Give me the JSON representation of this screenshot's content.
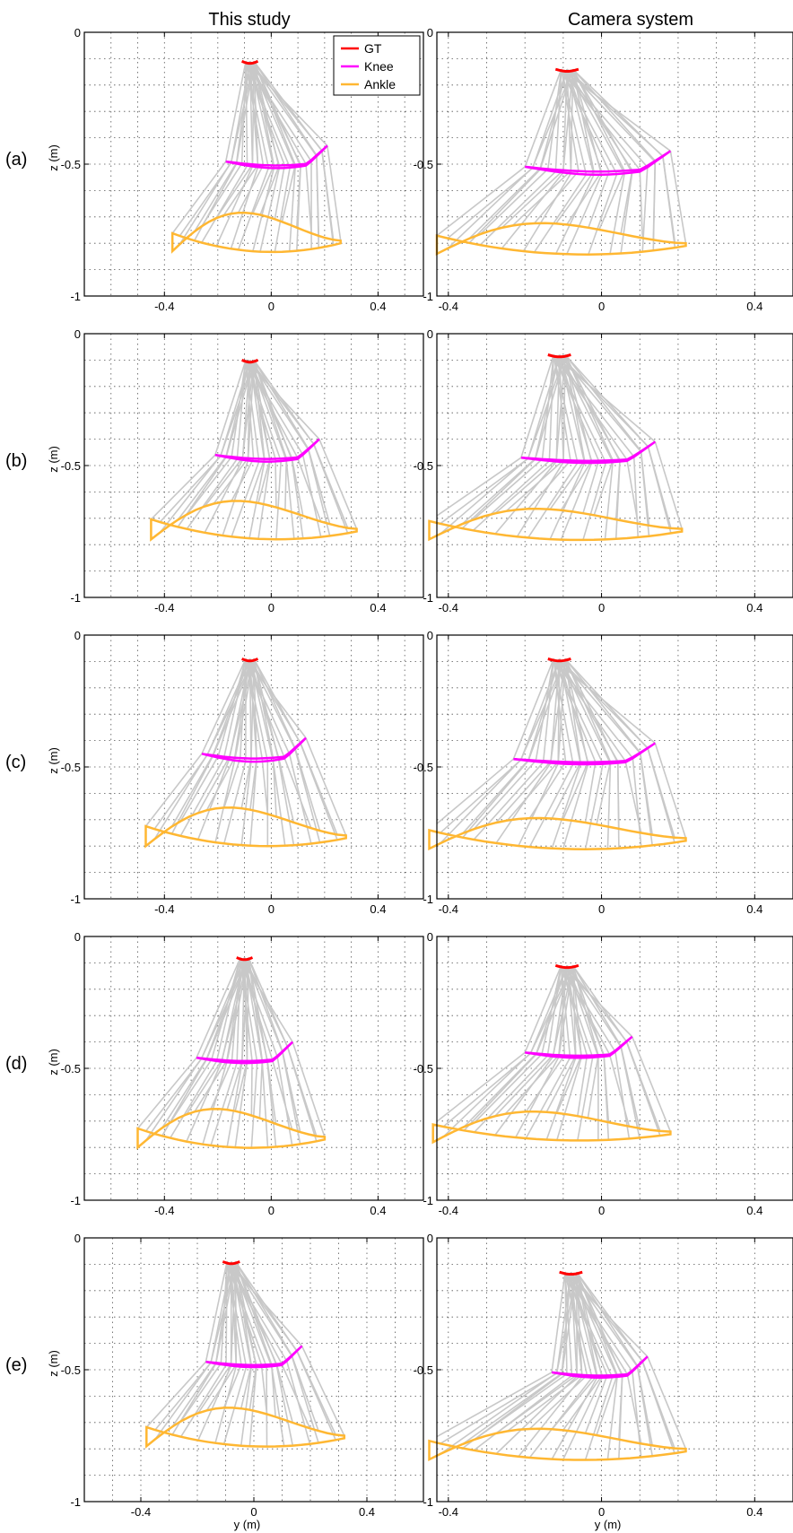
{
  "figure": {
    "columns": [
      "This study",
      "Camera system"
    ],
    "rows": [
      "(a)",
      "(b)",
      "(c)",
      "(d)",
      "(e)"
    ],
    "ylabel": "z (m)",
    "xlabel": "y (m)",
    "legend": [
      "GT",
      "Knee",
      "Ankle"
    ]
  },
  "colors": {
    "gt": "#ff0000",
    "knee": "#ff00ff",
    "ankle": "#ffb732",
    "limb": "#c8c8c8",
    "grid": "#555555"
  },
  "chart_data": [
    {
      "type": "line",
      "panel": "(a) This study",
      "xlim": [
        -0.7,
        0.57
      ],
      "ylim": [
        -1,
        0
      ],
      "xticks": [
        "-0.4",
        "0",
        "0.4"
      ],
      "yticks": [
        "0",
        "-0.5",
        "-1"
      ],
      "grid": true,
      "gt": {
        "y": -0.08,
        "z": -0.11
      },
      "knee": {
        "y0": -0.17,
        "y1": 0.21,
        "zc": -0.49,
        "sag": 0.025,
        "r": 0.09
      },
      "ankle": {
        "y0": -0.37,
        "y1": 0.26,
        "zc": -0.81,
        "sag": 0.05,
        "r": 0.13
      }
    },
    {
      "type": "line",
      "panel": "(a) Camera system",
      "xlim": [
        -0.43,
        0.5
      ],
      "ylim": [
        -1,
        0
      ],
      "xticks": [
        "-0.4",
        "0",
        "0.4"
      ],
      "yticks": [
        "-0.5",
        "-1"
      ],
      "grid": true,
      "gt": {
        "y": -0.09,
        "z": -0.14
      },
      "knee": {
        "y0": -0.2,
        "y1": 0.18,
        "zc": -0.51,
        "sag": 0.03,
        "r": 0.08
      },
      "ankle": {
        "y0": -0.43,
        "y1": 0.22,
        "zc": -0.82,
        "sag": 0.05,
        "r": 0.1
      }
    },
    {
      "type": "line",
      "panel": "(b) This study",
      "xlim": [
        -0.7,
        0.57
      ],
      "ylim": [
        -1,
        0
      ],
      "xticks": [
        "-0.4",
        "0",
        "0.4"
      ],
      "yticks": [
        "0",
        "-0.5",
        "-1"
      ],
      "grid": true,
      "gt": {
        "y": -0.08,
        "z": -0.1
      },
      "knee": {
        "y0": -0.21,
        "y1": 0.18,
        "zc": -0.46,
        "sag": 0.025,
        "r": 0.09
      },
      "ankle": {
        "y0": -0.45,
        "y1": 0.32,
        "zc": -0.76,
        "sag": 0.05,
        "r": 0.13
      }
    },
    {
      "type": "line",
      "panel": "(b) Camera system",
      "xlim": [
        -0.43,
        0.5
      ],
      "ylim": [
        -1,
        0
      ],
      "xticks": [
        "-0.4",
        "0",
        "0.4"
      ],
      "yticks": [
        "-0.5",
        "-1"
      ],
      "grid": true,
      "gt": {
        "y": -0.11,
        "z": -0.08
      },
      "knee": {
        "y0": -0.21,
        "y1": 0.14,
        "zc": -0.47,
        "sag": 0.02,
        "r": 0.08
      },
      "ankle": {
        "y0": -0.45,
        "y1": 0.21,
        "zc": -0.76,
        "sag": 0.05,
        "r": 0.1
      }
    },
    {
      "type": "line",
      "panel": "(c) This study",
      "xlim": [
        -0.7,
        0.57
      ],
      "ylim": [
        -1,
        0
      ],
      "xticks": [
        "-0.4",
        "0",
        "0.4"
      ],
      "yticks": [
        "0",
        "-0.5",
        "-1"
      ],
      "grid": true,
      "gt": {
        "y": -0.08,
        "z": -0.09
      },
      "knee": {
        "y0": -0.26,
        "y1": 0.13,
        "zc": -0.45,
        "sag": 0.03,
        "r": 0.09
      },
      "ankle": {
        "y0": -0.47,
        "y1": 0.28,
        "zc": -0.78,
        "sag": 0.05,
        "r": 0.13
      }
    },
    {
      "type": "line",
      "panel": "(c) Camera system",
      "xlim": [
        -0.43,
        0.5
      ],
      "ylim": [
        -1,
        0
      ],
      "xticks": [
        "-0.4",
        "0",
        "0.4"
      ],
      "yticks": [
        "-0.5",
        "-1"
      ],
      "grid": true,
      "gt": {
        "y": -0.11,
        "z": -0.09
      },
      "knee": {
        "y0": -0.23,
        "y1": 0.14,
        "zc": -0.47,
        "sag": 0.02,
        "r": 0.08
      },
      "ankle": {
        "y0": -0.45,
        "y1": 0.22,
        "zc": -0.79,
        "sag": 0.05,
        "r": 0.1
      }
    },
    {
      "type": "line",
      "panel": "(d) This study",
      "xlim": [
        -0.7,
        0.57
      ],
      "ylim": [
        -1,
        0
      ],
      "xticks": [
        "-0.4",
        "0",
        "0.4"
      ],
      "yticks": [
        "0",
        "-0.5",
        "-1"
      ],
      "grid": true,
      "gt": {
        "y": -0.1,
        "z": -0.08
      },
      "knee": {
        "y0": -0.28,
        "y1": 0.08,
        "zc": -0.46,
        "sag": 0.02,
        "r": 0.09
      },
      "ankle": {
        "y0": -0.5,
        "y1": 0.2,
        "zc": -0.78,
        "sag": 0.05,
        "r": 0.13
      }
    },
    {
      "type": "line",
      "panel": "(d) Camera system",
      "xlim": [
        -0.43,
        0.5
      ],
      "ylim": [
        -1,
        0
      ],
      "xticks": [
        "-0.4",
        "0",
        "0.4"
      ],
      "yticks": [
        "-0.5",
        "-1"
      ],
      "grid": true,
      "gt": {
        "y": -0.09,
        "z": -0.11
      },
      "knee": {
        "y0": -0.2,
        "y1": 0.08,
        "zc": -0.44,
        "sag": 0.02,
        "r": 0.08
      },
      "ankle": {
        "y0": -0.44,
        "y1": 0.18,
        "zc": -0.76,
        "sag": 0.04,
        "r": 0.1
      }
    },
    {
      "type": "line",
      "panel": "(e) This study",
      "xlim": [
        -0.6,
        0.6
      ],
      "ylim": [
        -1,
        0
      ],
      "xticks": [
        "-0.4",
        "0",
        "0.4"
      ],
      "yticks": [
        "0",
        "-0.5",
        "-1"
      ],
      "grid": true,
      "gt": {
        "y": -0.08,
        "z": -0.09
      },
      "knee": {
        "y0": -0.17,
        "y1": 0.17,
        "zc": -0.47,
        "sag": 0.02,
        "r": 0.09
      },
      "ankle": {
        "y0": -0.38,
        "y1": 0.32,
        "zc": -0.77,
        "sag": 0.05,
        "r": 0.13
      }
    },
    {
      "type": "line",
      "panel": "(e) Camera system",
      "xlim": [
        -0.43,
        0.5
      ],
      "ylim": [
        -1,
        0
      ],
      "xticks": [
        "-0.4",
        "0",
        "0.4"
      ],
      "yticks": [
        "-0.5",
        "-1"
      ],
      "grid": true,
      "gt": {
        "y": -0.08,
        "z": -0.13
      },
      "knee": {
        "y0": -0.13,
        "y1": 0.12,
        "zc": -0.51,
        "sag": 0.02,
        "r": 0.08
      },
      "ankle": {
        "y0": -0.45,
        "y1": 0.22,
        "zc": -0.82,
        "sag": 0.05,
        "r": 0.1
      }
    }
  ]
}
